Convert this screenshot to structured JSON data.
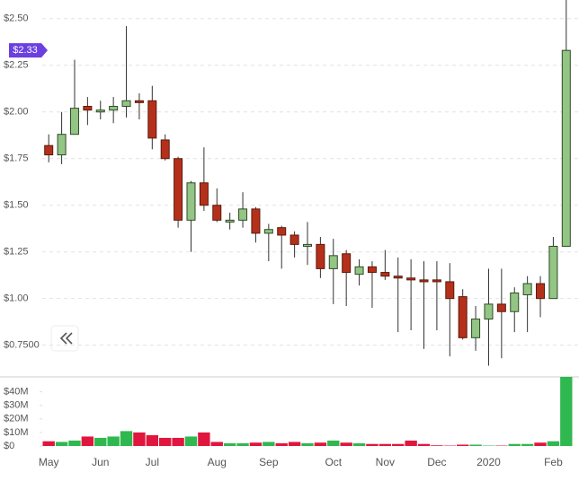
{
  "chart_data": {
    "type": "candlestick",
    "categories": [
      "May",
      null,
      null,
      null,
      "Jun",
      null,
      null,
      null,
      "Jul",
      null,
      null,
      null,
      null,
      "Aug",
      null,
      null,
      null,
      "Sep",
      null,
      null,
      null,
      null,
      "Oct",
      null,
      null,
      null,
      "Nov",
      null,
      null,
      null,
      "Dec",
      null,
      null,
      null,
      "2020",
      null,
      null,
      null,
      null,
      "Feb",
      null
    ],
    "open": [
      1.82,
      1.77,
      1.88,
      2.03,
      2.0,
      2.01,
      2.03,
      2.06,
      2.06,
      1.85,
      1.75,
      1.42,
      1.62,
      1.5,
      1.41,
      1.42,
      1.48,
      1.35,
      1.38,
      1.34,
      1.28,
      1.29,
      1.16,
      1.24,
      1.13,
      1.17,
      1.14,
      1.12,
      1.11,
      1.1,
      1.1,
      1.09,
      1.01,
      0.79,
      0.89,
      0.97,
      0.93,
      1.02,
      1.08,
      1.0,
      1.28
    ],
    "high": [
      1.88,
      2.0,
      2.28,
      2.08,
      2.06,
      2.08,
      2.46,
      2.1,
      2.14,
      1.88,
      1.76,
      1.63,
      1.81,
      1.59,
      1.46,
      1.57,
      1.49,
      1.4,
      1.39,
      1.36,
      1.41,
      1.33,
      1.32,
      1.26,
      1.21,
      1.2,
      1.26,
      1.22,
      1.21,
      1.2,
      1.2,
      1.19,
      1.05,
      0.96,
      1.16,
      1.16,
      1.06,
      1.12,
      1.12,
      1.33,
      2.6
    ],
    "low": [
      1.73,
      1.72,
      1.88,
      1.93,
      1.96,
      1.94,
      1.97,
      1.96,
      1.8,
      1.74,
      1.38,
      1.25,
      1.47,
      1.41,
      1.37,
      1.38,
      1.3,
      1.2,
      1.16,
      1.22,
      1.18,
      1.11,
      0.97,
      0.96,
      1.07,
      0.95,
      1.1,
      0.82,
      0.83,
      0.73,
      0.83,
      0.69,
      0.78,
      0.72,
      0.64,
      0.68,
      0.82,
      0.82,
      0.9,
      1.0,
      1.28
    ],
    "close": [
      1.77,
      1.88,
      2.02,
      2.01,
      2.01,
      2.03,
      2.06,
      2.05,
      1.86,
      1.75,
      1.42,
      1.62,
      1.5,
      1.42,
      1.42,
      1.48,
      1.35,
      1.37,
      1.34,
      1.29,
      1.29,
      1.16,
      1.23,
      1.14,
      1.17,
      1.14,
      1.12,
      1.11,
      1.1,
      1.09,
      1.09,
      1.0,
      0.79,
      0.89,
      0.97,
      0.93,
      1.03,
      1.08,
      1.0,
      1.28,
      2.33
    ],
    "volume": [
      3.5,
      3,
      4,
      7,
      6,
      7,
      11,
      10,
      8,
      6,
      6,
      7,
      10,
      3,
      2,
      2,
      2.5,
      3,
      2,
      3,
      2,
      2.5,
      4,
      2.5,
      2,
      1.5,
      1.5,
      1.5,
      4,
      1.5,
      0.5,
      0.3,
      1,
      1,
      0.3,
      0.3,
      1.5,
      1.5,
      2.5,
      3.5,
      51
    ],
    "up_color": "#93c585",
    "down_color": "#b5301a",
    "volume_up_color": "#2fb84f",
    "volume_down_color": "#e0163f",
    "ylim": [
      0.58,
      2.6
    ],
    "yticks": [
      {
        "value": 0.75,
        "label": "$0.7500"
      },
      {
        "value": 1,
        "label": "$1.00"
      },
      {
        "value": 1.25,
        "label": "$1.25"
      },
      {
        "value": 1.5,
        "label": "$1.50"
      },
      {
        "value": 1.75,
        "label": "$1.75"
      },
      {
        "value": 2,
        "label": "$2.00"
      },
      {
        "value": 2.25,
        "label": "$2.25"
      },
      {
        "value": 2.5,
        "label": "$2.50"
      }
    ],
    "volume_ylim": [
      0,
      51
    ],
    "volume_yticks": [
      {
        "value": 0,
        "label": "$0"
      },
      {
        "value": 10,
        "label": "$10M"
      },
      {
        "value": 20,
        "label": "$20M"
      },
      {
        "value": 30,
        "label": "$30M"
      },
      {
        "value": 40,
        "label": "$40M"
      }
    ],
    "last_price": {
      "value": 2.33,
      "label": "$2.33"
    },
    "grid": true
  }
}
